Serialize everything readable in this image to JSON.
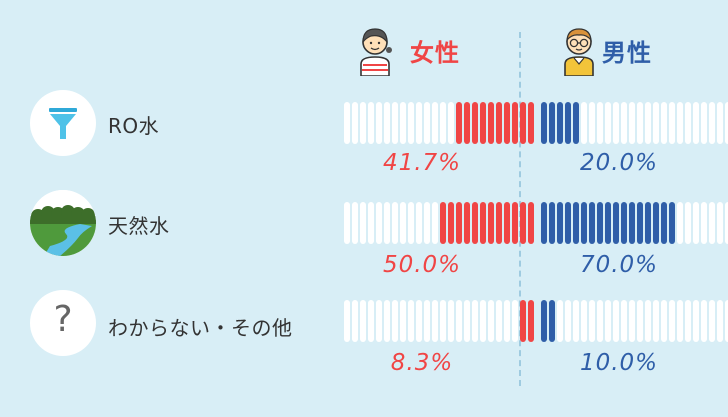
{
  "chart_data": {
    "type": "bar",
    "categories": [
      "RO水",
      "天然水",
      "わからない・その他"
    ],
    "series": [
      {
        "name": "女性",
        "values": [
          41.7,
          50.0,
          8.3
        ],
        "labels": [
          "41.7%",
          "50.0%",
          "8.3%"
        ],
        "color": "#f04545"
      },
      {
        "name": "男性",
        "values": [
          20.0,
          70.0,
          10.0
        ],
        "labels": [
          "20.0%",
          "70.0%",
          "10.0%"
        ],
        "color": "#2f5ea8"
      }
    ],
    "ylim": [
      0,
      100
    ],
    "segments": 24
  },
  "headers": {
    "female": "女性",
    "male": "男性"
  },
  "rows": [
    {
      "label": "RO水",
      "icon": "funnel-icon"
    },
    {
      "label": "天然水",
      "icon": "landscape-icon"
    },
    {
      "label": "わからない・その他",
      "icon": "question-icon",
      "glyph": "?"
    }
  ],
  "colors": {
    "background": "#d8eef6",
    "empty_segment": "#ffffff",
    "female": "#f04545",
    "male": "#2f5ea8"
  }
}
